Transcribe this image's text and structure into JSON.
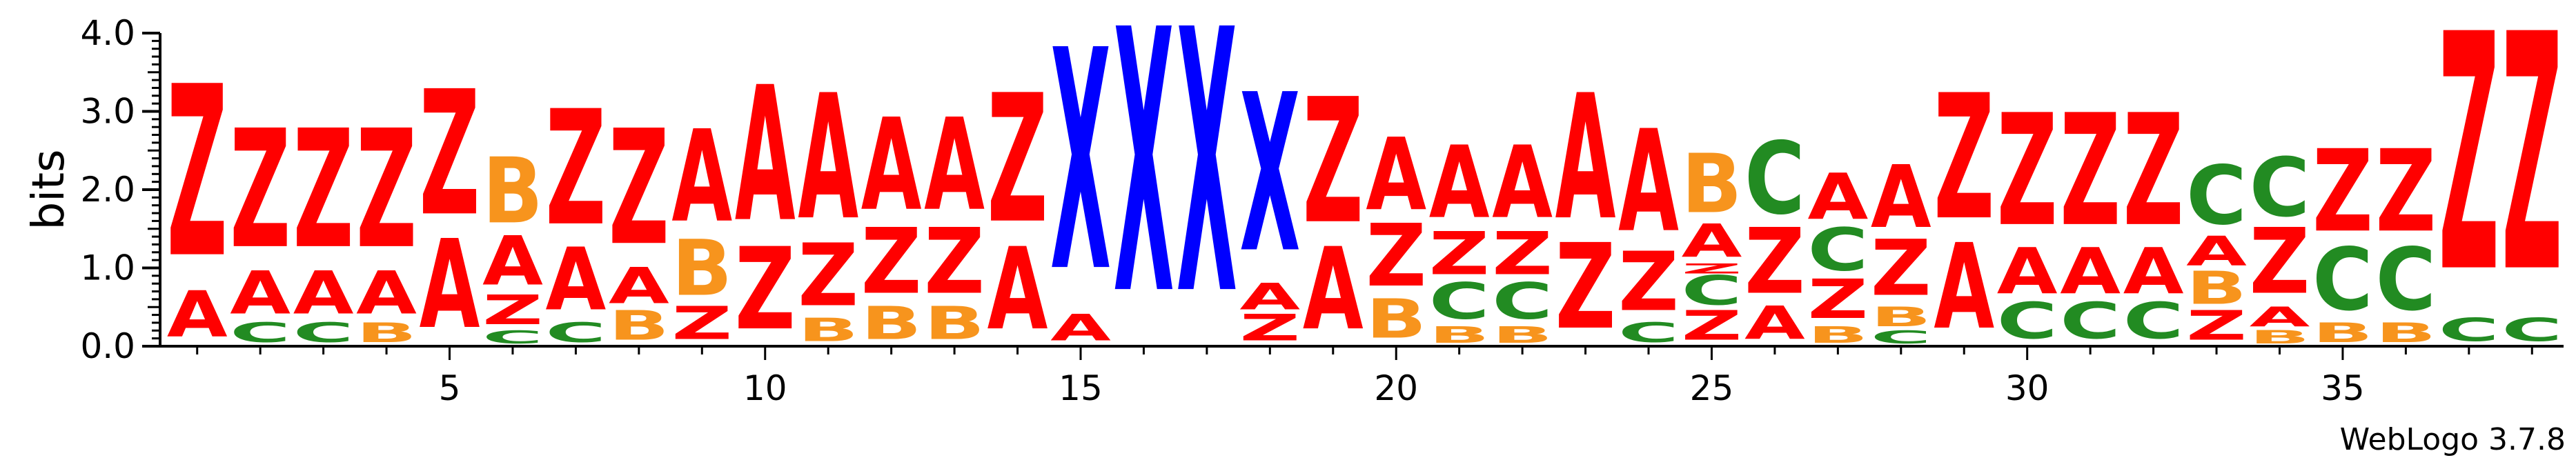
{
  "chart_data": {
    "type": "sequence-logo",
    "ylabel": "bits",
    "ylim": [
      0,
      4.0
    ],
    "y_ticks": [
      "0.0",
      "1.0",
      "2.0",
      "3.0",
      "4.0"
    ],
    "x_tick_labels": [
      "5",
      "10",
      "15",
      "20",
      "25",
      "30",
      "35"
    ],
    "x_tick_positions": [
      5,
      10,
      15,
      20,
      25,
      30,
      35
    ],
    "position_range": [
      1,
      38
    ],
    "colors": {
      "A": "#ff0000",
      "Z": "#ff0000",
      "B": "#f7941d",
      "C": "#228b22",
      "X": "#0000ff"
    },
    "columns": [
      {
        "pos": 1,
        "stack": [
          {
            "l": "A",
            "h": 0.7
          },
          {
            "l": "Z",
            "h": 2.6
          }
        ]
      },
      {
        "pos": 2,
        "stack": [
          {
            "l": "C",
            "h": 0.3
          },
          {
            "l": "A",
            "h": 0.65
          },
          {
            "l": "Z",
            "h": 1.8
          }
        ]
      },
      {
        "pos": 3,
        "stack": [
          {
            "l": "C",
            "h": 0.3
          },
          {
            "l": "A",
            "h": 0.65
          },
          {
            "l": "Z",
            "h": 1.8
          }
        ]
      },
      {
        "pos": 4,
        "stack": [
          {
            "l": "B",
            "h": 0.3
          },
          {
            "l": "A",
            "h": 0.65
          },
          {
            "l": "Z",
            "h": 1.8
          }
        ]
      },
      {
        "pos": 5,
        "stack": [
          {
            "l": "A",
            "h": 1.35
          },
          {
            "l": "Z",
            "h": 1.9
          }
        ]
      },
      {
        "pos": 6,
        "stack": [
          {
            "l": "C",
            "h": 0.2
          },
          {
            "l": "Z",
            "h": 0.45
          },
          {
            "l": "A",
            "h": 0.75
          },
          {
            "l": "B",
            "h": 1.0
          }
        ]
      },
      {
        "pos": 7,
        "stack": [
          {
            "l": "C",
            "h": 0.3
          },
          {
            "l": "A",
            "h": 0.95
          },
          {
            "l": "Z",
            "h": 1.75
          }
        ]
      },
      {
        "pos": 8,
        "stack": [
          {
            "l": "B",
            "h": 0.45
          },
          {
            "l": "A",
            "h": 0.55
          },
          {
            "l": "Z",
            "h": 1.75
          }
        ]
      },
      {
        "pos": 9,
        "stack": [
          {
            "l": "Z",
            "h": 0.5
          },
          {
            "l": "B",
            "h": 0.85
          },
          {
            "l": "A",
            "h": 1.4
          }
        ]
      },
      {
        "pos": 10,
        "stack": [
          {
            "l": "Z",
            "h": 1.25
          },
          {
            "l": "A",
            "h": 2.05
          }
        ]
      },
      {
        "pos": 11,
        "stack": [
          {
            "l": "B",
            "h": 0.35
          },
          {
            "l": "Z",
            "h": 0.95
          },
          {
            "l": "A",
            "h": 1.9
          }
        ]
      },
      {
        "pos": 12,
        "stack": [
          {
            "l": "B",
            "h": 0.5
          },
          {
            "l": "Z",
            "h": 1.0
          },
          {
            "l": "A",
            "h": 1.4
          }
        ]
      },
      {
        "pos": 13,
        "stack": [
          {
            "l": "B",
            "h": 0.5
          },
          {
            "l": "Z",
            "h": 1.0
          },
          {
            "l": "A",
            "h": 1.4
          }
        ]
      },
      {
        "pos": 14,
        "stack": [
          {
            "l": "A",
            "h": 1.25
          },
          {
            "l": "Z",
            "h": 1.95
          }
        ]
      },
      {
        "pos": 15,
        "stack": [
          {
            "l": "A",
            "h": 0.4
          },
          {
            "l": "X",
            "h": 3.35
          }
        ]
      },
      {
        "pos": 16,
        "stack": [
          {
            "l": "X",
            "h": 4.0
          }
        ]
      },
      {
        "pos": 17,
        "stack": [
          {
            "l": "X",
            "h": 4.0
          }
        ]
      },
      {
        "pos": 18,
        "stack": [
          {
            "l": "Z",
            "h": 0.4
          },
          {
            "l": "A",
            "h": 0.4
          },
          {
            "l": "X",
            "h": 2.4
          }
        ]
      },
      {
        "pos": 19,
        "stack": [
          {
            "l": "A",
            "h": 1.25
          },
          {
            "l": "Z",
            "h": 1.9
          }
        ]
      },
      {
        "pos": 20,
        "stack": [
          {
            "l": "B",
            "h": 0.6
          },
          {
            "l": "Z",
            "h": 0.95
          },
          {
            "l": "A",
            "h": 1.1
          }
        ]
      },
      {
        "pos": 21,
        "stack": [
          {
            "l": "B",
            "h": 0.25
          },
          {
            "l": "C",
            "h": 0.55
          },
          {
            "l": "Z",
            "h": 0.65
          },
          {
            "l": "A",
            "h": 1.1
          }
        ]
      },
      {
        "pos": 22,
        "stack": [
          {
            "l": "B",
            "h": 0.25
          },
          {
            "l": "C",
            "h": 0.55
          },
          {
            "l": "Z",
            "h": 0.65
          },
          {
            "l": "A",
            "h": 1.1
          }
        ]
      },
      {
        "pos": 23,
        "stack": [
          {
            "l": "Z",
            "h": 1.3
          },
          {
            "l": "A",
            "h": 1.9
          }
        ]
      },
      {
        "pos": 24,
        "stack": [
          {
            "l": "C",
            "h": 0.3
          },
          {
            "l": "Z",
            "h": 0.9
          },
          {
            "l": "A",
            "h": 1.55
          }
        ]
      },
      {
        "pos": 25,
        "stack": [
          {
            "l": "Z",
            "h": 0.45
          },
          {
            "l": "C",
            "h": 0.45
          },
          {
            "l": "Z",
            "h": 0.15
          },
          {
            "l": "A",
            "h": 0.5
          },
          {
            "l": "B",
            "h": 0.9
          }
        ]
      },
      {
        "pos": 26,
        "stack": [
          {
            "l": "A",
            "h": 0.5
          },
          {
            "l": "Z",
            "h": 1.0
          },
          {
            "l": "C",
            "h": 1.1
          }
        ]
      },
      {
        "pos": 27,
        "stack": [
          {
            "l": "B",
            "h": 0.25
          },
          {
            "l": "Z",
            "h": 0.6
          },
          {
            "l": "C",
            "h": 0.65
          },
          {
            "l": "A",
            "h": 0.7
          }
        ]
      },
      {
        "pos": 28,
        "stack": [
          {
            "l": "C",
            "h": 0.2
          },
          {
            "l": "B",
            "h": 0.3
          },
          {
            "l": "Z",
            "h": 0.85
          },
          {
            "l": "A",
            "h": 0.95
          }
        ]
      },
      {
        "pos": 29,
        "stack": [
          {
            "l": "A",
            "h": 1.3
          },
          {
            "l": "Z",
            "h": 1.9
          }
        ]
      },
      {
        "pos": 30,
        "stack": [
          {
            "l": "C",
            "h": 0.55
          },
          {
            "l": "A",
            "h": 0.7
          },
          {
            "l": "Z",
            "h": 1.7
          }
        ]
      },
      {
        "pos": 31,
        "stack": [
          {
            "l": "C",
            "h": 0.55
          },
          {
            "l": "A",
            "h": 0.7
          },
          {
            "l": "Z",
            "h": 1.7
          }
        ]
      },
      {
        "pos": 32,
        "stack": [
          {
            "l": "C",
            "h": 0.55
          },
          {
            "l": "A",
            "h": 0.7
          },
          {
            "l": "Z",
            "h": 1.7
          }
        ]
      },
      {
        "pos": 33,
        "stack": [
          {
            "l": "Z",
            "h": 0.45
          },
          {
            "l": "B",
            "h": 0.5
          },
          {
            "l": "A",
            "h": 0.45
          },
          {
            "l": "C",
            "h": 0.9
          }
        ]
      },
      {
        "pos": 34,
        "stack": [
          {
            "l": "B",
            "h": 0.2
          },
          {
            "l": "A",
            "h": 0.3
          },
          {
            "l": "Z",
            "h": 1.0
          },
          {
            "l": "C",
            "h": 0.9
          }
        ]
      },
      {
        "pos": 35,
        "stack": [
          {
            "l": "B",
            "h": 0.3
          },
          {
            "l": "C",
            "h": 0.95
          },
          {
            "l": "Z",
            "h": 1.25
          }
        ]
      },
      {
        "pos": 36,
        "stack": [
          {
            "l": "B",
            "h": 0.3
          },
          {
            "l": "C",
            "h": 0.95
          },
          {
            "l": "Z",
            "h": 1.25
          }
        ]
      },
      {
        "pos": 37,
        "stack": [
          {
            "l": "C",
            "h": 0.35
          },
          {
            "l": "Z",
            "h": 3.6
          }
        ]
      },
      {
        "pos": 38,
        "stack": [
          {
            "l": "C",
            "h": 0.35
          },
          {
            "l": "Z",
            "h": 3.6
          }
        ]
      }
    ]
  },
  "footer": {
    "credit": "WebLogo 3.7.8"
  }
}
